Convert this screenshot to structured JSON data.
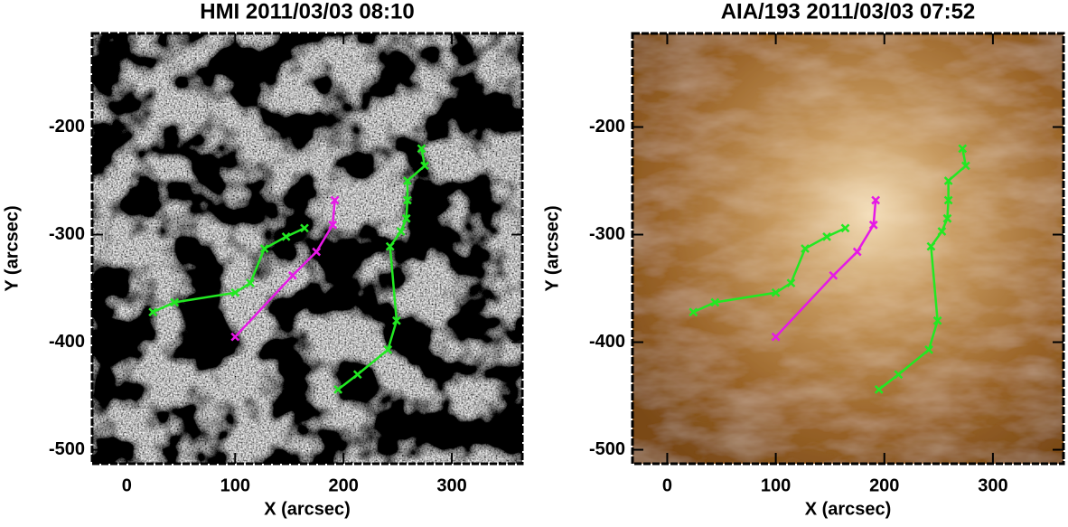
{
  "chart_data": [
    {
      "type": "line",
      "title": "HMI 2011/03/03 08:10",
      "x_label": "X (arcsec)",
      "y_label": "Y (arcsec)",
      "xlim": [
        -32,
        365
      ],
      "ylim": [
        -513,
        -113
      ],
      "xticks": [
        0,
        100,
        200,
        300
      ],
      "yticks": [
        -500,
        -400,
        -300,
        -200
      ],
      "series": [
        {
          "color": "#22e822",
          "x": [
            24,
            44,
            100,
            114,
            127,
            147,
            164
          ],
          "values": [
            -372,
            -363,
            -354,
            -345,
            -313,
            -302,
            -294
          ]
        },
        {
          "color": "#e619e6",
          "x": [
            100,
            153,
            175,
            190,
            192
          ],
          "values": [
            -395,
            -338,
            -316,
            -291,
            -268
          ]
        },
        {
          "color": "#22e822",
          "x": [
            195,
            213,
            241,
            249,
            243,
            253,
            258,
            259,
            259,
            275,
            272
          ],
          "values": [
            -444,
            -430,
            -407,
            -380,
            -311,
            -297,
            -285,
            -268,
            -250,
            -236,
            -220
          ]
        }
      ]
    },
    {
      "type": "line",
      "title": "AIA/193 2011/03/03 07:52",
      "x_label": "X (arcsec)",
      "y_label": "Y (arcsec)",
      "xlim": [
        -32,
        365
      ],
      "ylim": [
        -513,
        -113
      ],
      "xticks": [
        0,
        100,
        200,
        300
      ],
      "yticks": [
        -500,
        -400,
        -300,
        -200
      ],
      "series": [
        {
          "color": "#22e822",
          "x": [
            24,
            44,
            100,
            114,
            127,
            147,
            164
          ],
          "values": [
            -372,
            -363,
            -354,
            -345,
            -313,
            -302,
            -294
          ]
        },
        {
          "color": "#e619e6",
          "x": [
            100,
            153,
            175,
            190,
            192
          ],
          "values": [
            -395,
            -338,
            -316,
            -291,
            -268
          ]
        },
        {
          "color": "#22e822",
          "x": [
            195,
            213,
            241,
            249,
            243,
            253,
            258,
            259,
            259,
            275,
            272
          ],
          "values": [
            -444,
            -430,
            -407,
            -380,
            -311,
            -297,
            -285,
            -268,
            -250,
            -236,
            -220
          ]
        }
      ]
    }
  ]
}
